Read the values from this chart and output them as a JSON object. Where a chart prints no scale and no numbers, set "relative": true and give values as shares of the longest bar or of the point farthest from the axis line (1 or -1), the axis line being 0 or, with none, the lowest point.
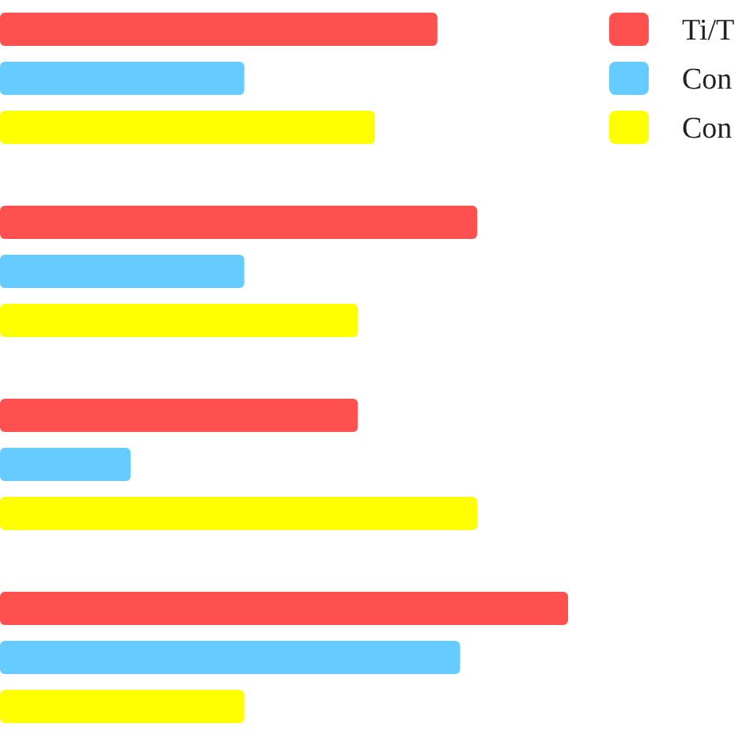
{
  "chart_data": {
    "type": "bar",
    "orientation": "horizontal",
    "relative": true,
    "categories": [
      null,
      null,
      null,
      null
    ],
    "legend": "top right",
    "series": [
      {
        "name": "Ti/T",
        "color": "#ff5050",
        "values": [
          0.77,
          0.84,
          0.63,
          1
        ]
      },
      {
        "name": "Con",
        "color": "#66ccff",
        "values": [
          0.43,
          0.43,
          0.23,
          0.81
        ]
      },
      {
        "name": "Con",
        "color": "#ffff00",
        "values": [
          0.66,
          0.63,
          0.84,
          0.43
        ]
      }
    ]
  }
}
